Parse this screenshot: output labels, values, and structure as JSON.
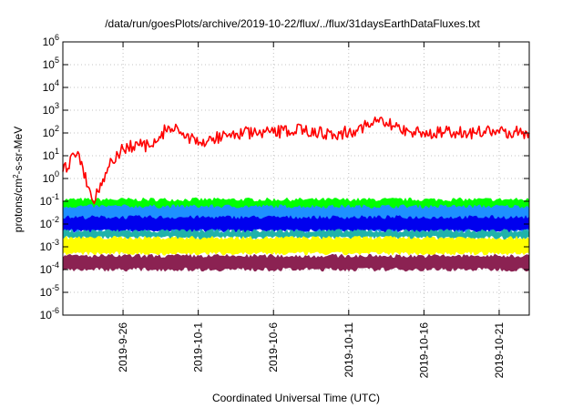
{
  "chart_data": {
    "type": "line",
    "title": "/data/run/goesPlots/archive/2019-10-22/flux/../flux/31daysEarthDataFluxes.txt",
    "xlabel": "Coordinated Universal Time (UTC)",
    "ylabel": {
      "base": "protons/cm",
      "sup": "2",
      "rest": "-s-sr-MeV"
    },
    "y_scale": "log",
    "ylim": [
      1e-06,
      1000000.0
    ],
    "y_ticks": [
      {
        "value": 1e-06,
        "base": "10",
        "exp": "-6"
      },
      {
        "value": 1e-05,
        "base": "10",
        "exp": "-5"
      },
      {
        "value": 0.0001,
        "base": "10",
        "exp": "-4"
      },
      {
        "value": 0.001,
        "base": "10",
        "exp": "-3"
      },
      {
        "value": 0.01,
        "base": "10",
        "exp": "-2"
      },
      {
        "value": 0.1,
        "base": "10",
        "exp": "-1"
      },
      {
        "value": 1,
        "base": "10",
        "exp": "0"
      },
      {
        "value": 10,
        "base": "10",
        "exp": "1"
      },
      {
        "value": 100,
        "base": "10",
        "exp": "2"
      },
      {
        "value": 1000,
        "base": "10",
        "exp": "3"
      },
      {
        "value": 10000,
        "base": "10",
        "exp": "4"
      },
      {
        "value": 100000,
        "base": "10",
        "exp": "5"
      },
      {
        "value": 1000000,
        "base": "10",
        "exp": "6"
      }
    ],
    "xlim": [
      "2019-09-22",
      "2019-10-23"
    ],
    "x_ticks": [
      "2019-9-26",
      "2019-10-1",
      "2019-10-6",
      "2019-10-11",
      "2019-10-16",
      "2019-10-21"
    ],
    "grid": true,
    "legend": "none",
    "series": [
      {
        "color": "#ff0000",
        "style": "line",
        "x": [
          "2019-09-22",
          "2019-09-23",
          "2019-09-24",
          "2019-09-25",
          "2019-09-26",
          "2019-09-27",
          "2019-09-28",
          "2019-09-29",
          "2019-09-30",
          "2019-10-01",
          "2019-10-02",
          "2019-10-03",
          "2019-10-04",
          "2019-10-05",
          "2019-10-06",
          "2019-10-07",
          "2019-10-08",
          "2019-10-09",
          "2019-10-10",
          "2019-10-11",
          "2019-10-12",
          "2019-10-13",
          "2019-10-14",
          "2019-10-15",
          "2019-10-16",
          "2019-10-17",
          "2019-10-18",
          "2019-10-19",
          "2019-10-20",
          "2019-10-21",
          "2019-10-22",
          "2019-10-23"
        ],
        "y": [
          2,
          15,
          0.1,
          3,
          20,
          30,
          25,
          200,
          100,
          30,
          60,
          80,
          100,
          90,
          100,
          130,
          150,
          100,
          90,
          110,
          200,
          300,
          200,
          120,
          100,
          100,
          110,
          100,
          120,
          100,
          120,
          100
        ]
      },
      {
        "color": "#00ff00",
        "style": "band",
        "y_range": [
          0.04,
          0.12
        ]
      },
      {
        "color": "#1e90ff",
        "style": "band",
        "y_range": [
          0.005,
          0.06
        ]
      },
      {
        "color": "#0000ee",
        "style": "band",
        "y_range": [
          0.005,
          0.02
        ]
      },
      {
        "color": "#20b2aa",
        "style": "band",
        "y_range": [
          0.0025,
          0.005
        ]
      },
      {
        "color": "#ffff00",
        "style": "band",
        "y_range": [
          0.0005,
          0.0025
        ]
      },
      {
        "color": "#8b2252",
        "style": "band",
        "y_range": [
          0.0001,
          0.0004
        ]
      }
    ]
  }
}
